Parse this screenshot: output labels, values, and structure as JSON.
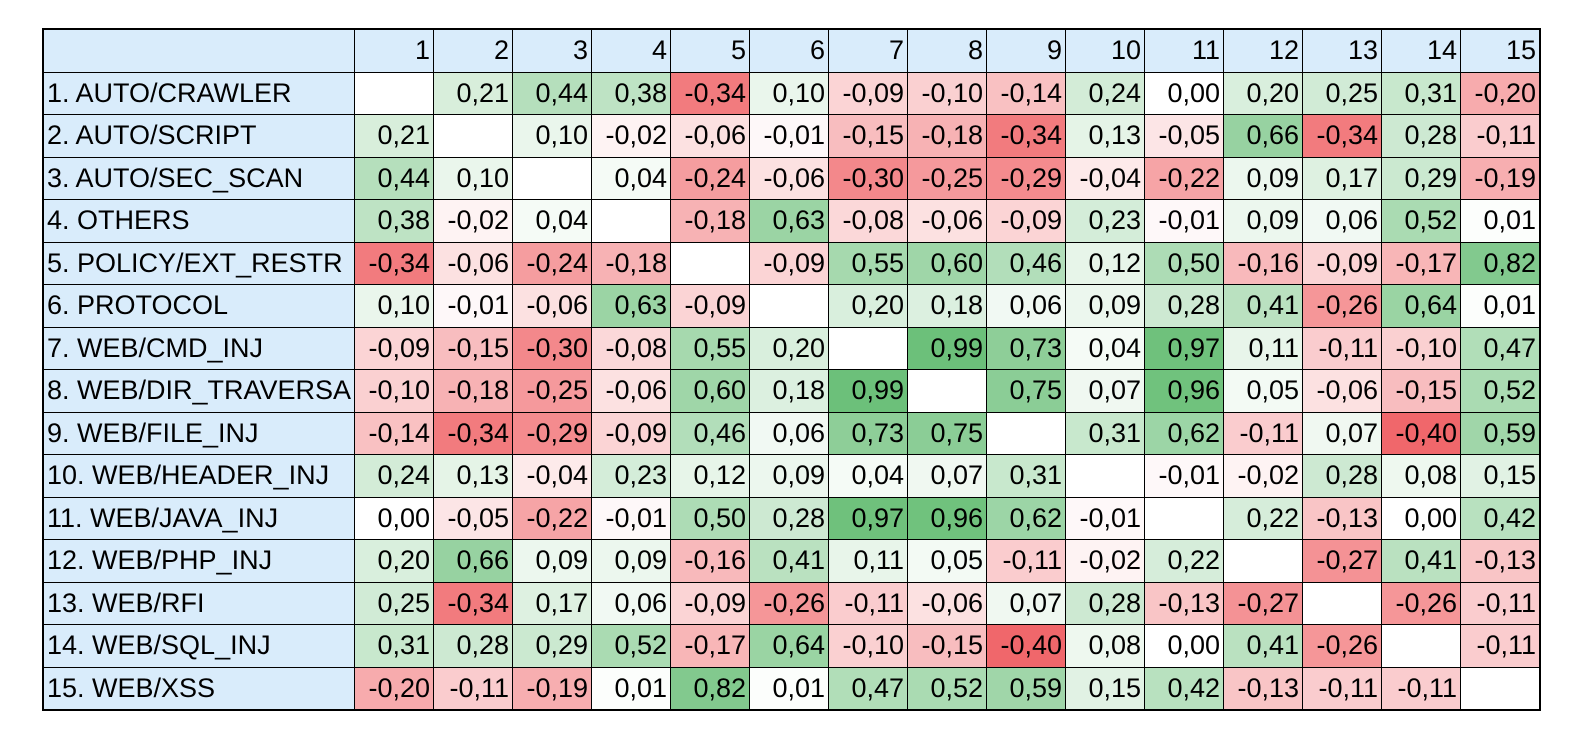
{
  "table": {
    "column_headers": [
      "1",
      "2",
      "3",
      "4",
      "5",
      "6",
      "7",
      "8",
      "9",
      "10",
      "11",
      "12",
      "13",
      "14",
      "15"
    ],
    "row_labels": [
      "1. AUTO/CRAWLER",
      "2. AUTO/SCRIPT",
      "3. AUTO/SEC_SCAN",
      "4. OTHERS",
      "5. POLICY/EXT_RESTR",
      "6. PROTOCOL",
      "7. WEB/CMD_INJ",
      "8. WEB/DIR_TRAVERSA",
      "9. WEB/FILE_INJ",
      "10. WEB/HEADER_INJ",
      "11. WEB/JAVA_INJ",
      "12. WEB/PHP_INJ",
      "13. WEB/RFI",
      "14. WEB/SQL_INJ",
      "15. WEB/XSS"
    ],
    "cells": [
      [
        "",
        "0,21",
        "0,44",
        "0,38",
        "-0,34",
        "0,10",
        "-0,09",
        "-0,10",
        "-0,14",
        "0,24",
        "0,00",
        "0,20",
        "0,25",
        "0,31",
        "-0,20"
      ],
      [
        "0,21",
        "",
        "0,10",
        "-0,02",
        "-0,06",
        "-0,01",
        "-0,15",
        "-0,18",
        "-0,34",
        "0,13",
        "-0,05",
        "0,66",
        "-0,34",
        "0,28",
        "-0,11"
      ],
      [
        "0,44",
        "0,10",
        "",
        "0,04",
        "-0,24",
        "-0,06",
        "-0,30",
        "-0,25",
        "-0,29",
        "-0,04",
        "-0,22",
        "0,09",
        "0,17",
        "0,29",
        "-0,19"
      ],
      [
        "0,38",
        "-0,02",
        "0,04",
        "",
        "-0,18",
        "0,63",
        "-0,08",
        "-0,06",
        "-0,09",
        "0,23",
        "-0,01",
        "0,09",
        "0,06",
        "0,52",
        "0,01"
      ],
      [
        "-0,34",
        "-0,06",
        "-0,24",
        "-0,18",
        "",
        "-0,09",
        "0,55",
        "0,60",
        "0,46",
        "0,12",
        "0,50",
        "-0,16",
        "-0,09",
        "-0,17",
        "0,82"
      ],
      [
        "0,10",
        "-0,01",
        "-0,06",
        "0,63",
        "-0,09",
        "",
        "0,20",
        "0,18",
        "0,06",
        "0,09",
        "0,28",
        "0,41",
        "-0,26",
        "0,64",
        "0,01"
      ],
      [
        "-0,09",
        "-0,15",
        "-0,30",
        "-0,08",
        "0,55",
        "0,20",
        "",
        "0,99",
        "0,73",
        "0,04",
        "0,97",
        "0,11",
        "-0,11",
        "-0,10",
        "0,47"
      ],
      [
        "-0,10",
        "-0,18",
        "-0,25",
        "-0,06",
        "0,60",
        "0,18",
        "0,99",
        "",
        "0,75",
        "0,07",
        "0,96",
        "0,05",
        "-0,06",
        "-0,15",
        "0,52"
      ],
      [
        "-0,14",
        "-0,34",
        "-0,29",
        "-0,09",
        "0,46",
        "0,06",
        "0,73",
        "0,75",
        "",
        "0,31",
        "0,62",
        "-0,11",
        "0,07",
        "-0,40",
        "0,59"
      ],
      [
        "0,24",
        "0,13",
        "-0,04",
        "0,23",
        "0,12",
        "0,09",
        "0,04",
        "0,07",
        "0,31",
        "",
        "-0,01",
        "-0,02",
        "0,28",
        "0,08",
        "0,15"
      ],
      [
        "0,00",
        "-0,05",
        "-0,22",
        "-0,01",
        "0,50",
        "0,28",
        "0,97",
        "0,96",
        "0,62",
        "-0,01",
        "",
        "0,22",
        "-0,13",
        "0,00",
        "0,42"
      ],
      [
        "0,20",
        "0,66",
        "0,09",
        "0,09",
        "-0,16",
        "0,41",
        "0,11",
        "0,05",
        "-0,11",
        "-0,02",
        "0,22",
        "",
        "-0,27",
        "0,41",
        "-0,13"
      ],
      [
        "0,25",
        "-0,34",
        "0,17",
        "0,06",
        "-0,09",
        "-0,26",
        "-0,11",
        "-0,06",
        "0,07",
        "0,28",
        "-0,13",
        "-0,27",
        "",
        "-0,26",
        "-0,11"
      ],
      [
        "0,31",
        "0,28",
        "0,29",
        "0,52",
        "-0,17",
        "0,64",
        "-0,10",
        "-0,15",
        "-0,40",
        "0,08",
        "0,00",
        "0,41",
        "-0,26",
        "",
        "-0,11"
      ],
      [
        "-0,20",
        "-0,11",
        "-0,19",
        "0,01",
        "0,82",
        "0,01",
        "0,47",
        "0,52",
        "0,59",
        "0,15",
        "0,42",
        "-0,13",
        "-0,11",
        "-0,11",
        ""
      ]
    ]
  },
  "colors": {
    "header_bg": "#d9ecfb",
    "positive_max": "#6cc07a",
    "negative_max": "#f0676b",
    "neutral": "#ffffff",
    "border": "#000000"
  }
}
